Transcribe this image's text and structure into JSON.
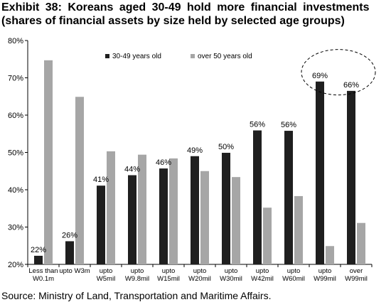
{
  "chart_data": {
    "type": "bar",
    "title": "Exhibit 38: Koreans aged 30-49 hold more financial investments",
    "subtitle": "(shares of financial assets by size held by selected age groups)",
    "source": "Source: Ministry of Land, Transportation and Maritime Affairs.",
    "categories": [
      [
        "Less than",
        "W0.1m"
      ],
      [
        "upto W3m"
      ],
      [
        "upto",
        "W5mil"
      ],
      [
        "upto",
        "W9.8mil"
      ],
      [
        "upto",
        "W15mil"
      ],
      [
        "upto",
        "W20mil"
      ],
      [
        "upto",
        "W30mil"
      ],
      [
        "upto",
        "W42mil"
      ],
      [
        "upto",
        "W60mil"
      ],
      [
        "upto",
        "W99mil"
      ],
      [
        "over",
        "W99mil"
      ]
    ],
    "series": [
      {
        "name": "30-49 years old",
        "color": "#1f1f1f",
        "values": [
          22.3,
          26.2,
          41.1,
          43.9,
          45.7,
          49.0,
          49.9,
          55.9,
          55.8,
          69.0,
          66.5
        ],
        "labels": [
          "22%",
          "26%",
          "41%",
          "44%",
          "46%",
          "49%",
          "50%",
          "56%",
          "56%",
          "69%",
          "66%"
        ]
      },
      {
        "name": "over 50 years old",
        "color": "#a6a6a6",
        "values": [
          74.7,
          64.9,
          50.3,
          49.4,
          48.4,
          45.0,
          43.4,
          35.2,
          38.3,
          24.9,
          31.1
        ]
      }
    ],
    "ylim": [
      20,
      80
    ],
    "yticks": [
      "20%",
      "30%",
      "40%",
      "50%",
      "60%",
      "70%",
      "80%"
    ],
    "ytick_values": [
      20,
      30,
      40,
      50,
      60,
      70,
      80
    ],
    "grid": false,
    "legend": "top-center",
    "annotation": "dashed circle highlighting the two highest 30-49 bars"
  }
}
